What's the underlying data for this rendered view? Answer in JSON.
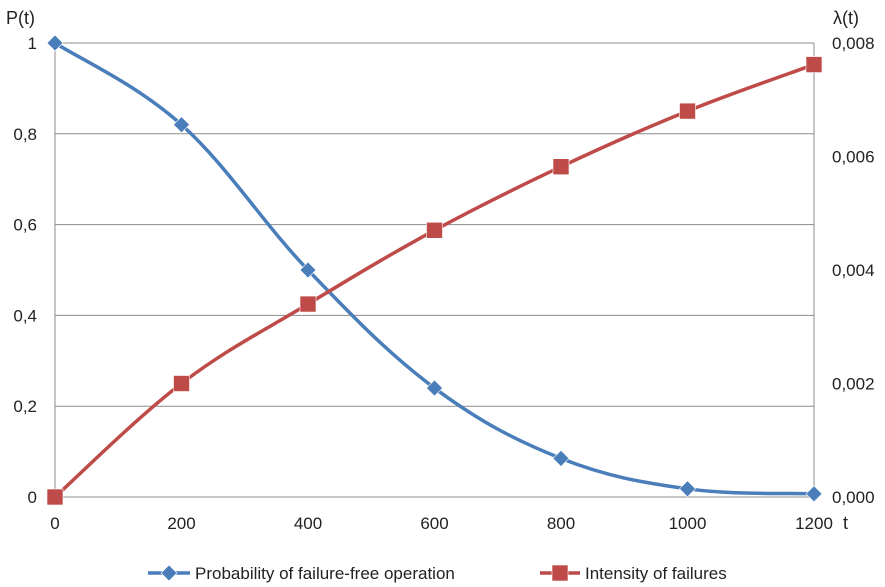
{
  "chart_data": {
    "type": "line",
    "x": [
      0,
      200,
      400,
      600,
      800,
      1000,
      1200
    ],
    "xlabel": "t",
    "ylabel_left": "P(t)",
    "ylabel_right": "λ(t)",
    "xlim": [
      0,
      1200
    ],
    "ylim_left": [
      0,
      1
    ],
    "ylim_right": [
      0,
      0.008
    ],
    "x_ticks": [
      "0",
      "200",
      "400",
      "600",
      "800",
      "1000",
      "1200"
    ],
    "y_ticks_left": [
      "0",
      "0,2",
      "0,4",
      "0,6",
      "0,8",
      "1"
    ],
    "y_ticks_right": [
      "0,000",
      "0,002",
      "0,004",
      "0,006",
      "0,008"
    ],
    "grid": "horizontal",
    "legend_position": "bottom",
    "series": [
      {
        "name": "Probability of failure-free operation",
        "axis": "left",
        "marker": "diamond",
        "color": "#4a7ebb",
        "values": [
          1.0,
          0.82,
          0.5,
          0.24,
          0.085,
          0.018,
          0.007
        ]
      },
      {
        "name": "Intensity of failures",
        "axis": "right",
        "marker": "square",
        "color": "#be4b48",
        "values": [
          0.0,
          0.002,
          0.0034,
          0.0047,
          0.00582,
          0.0068,
          0.00762
        ]
      }
    ]
  }
}
